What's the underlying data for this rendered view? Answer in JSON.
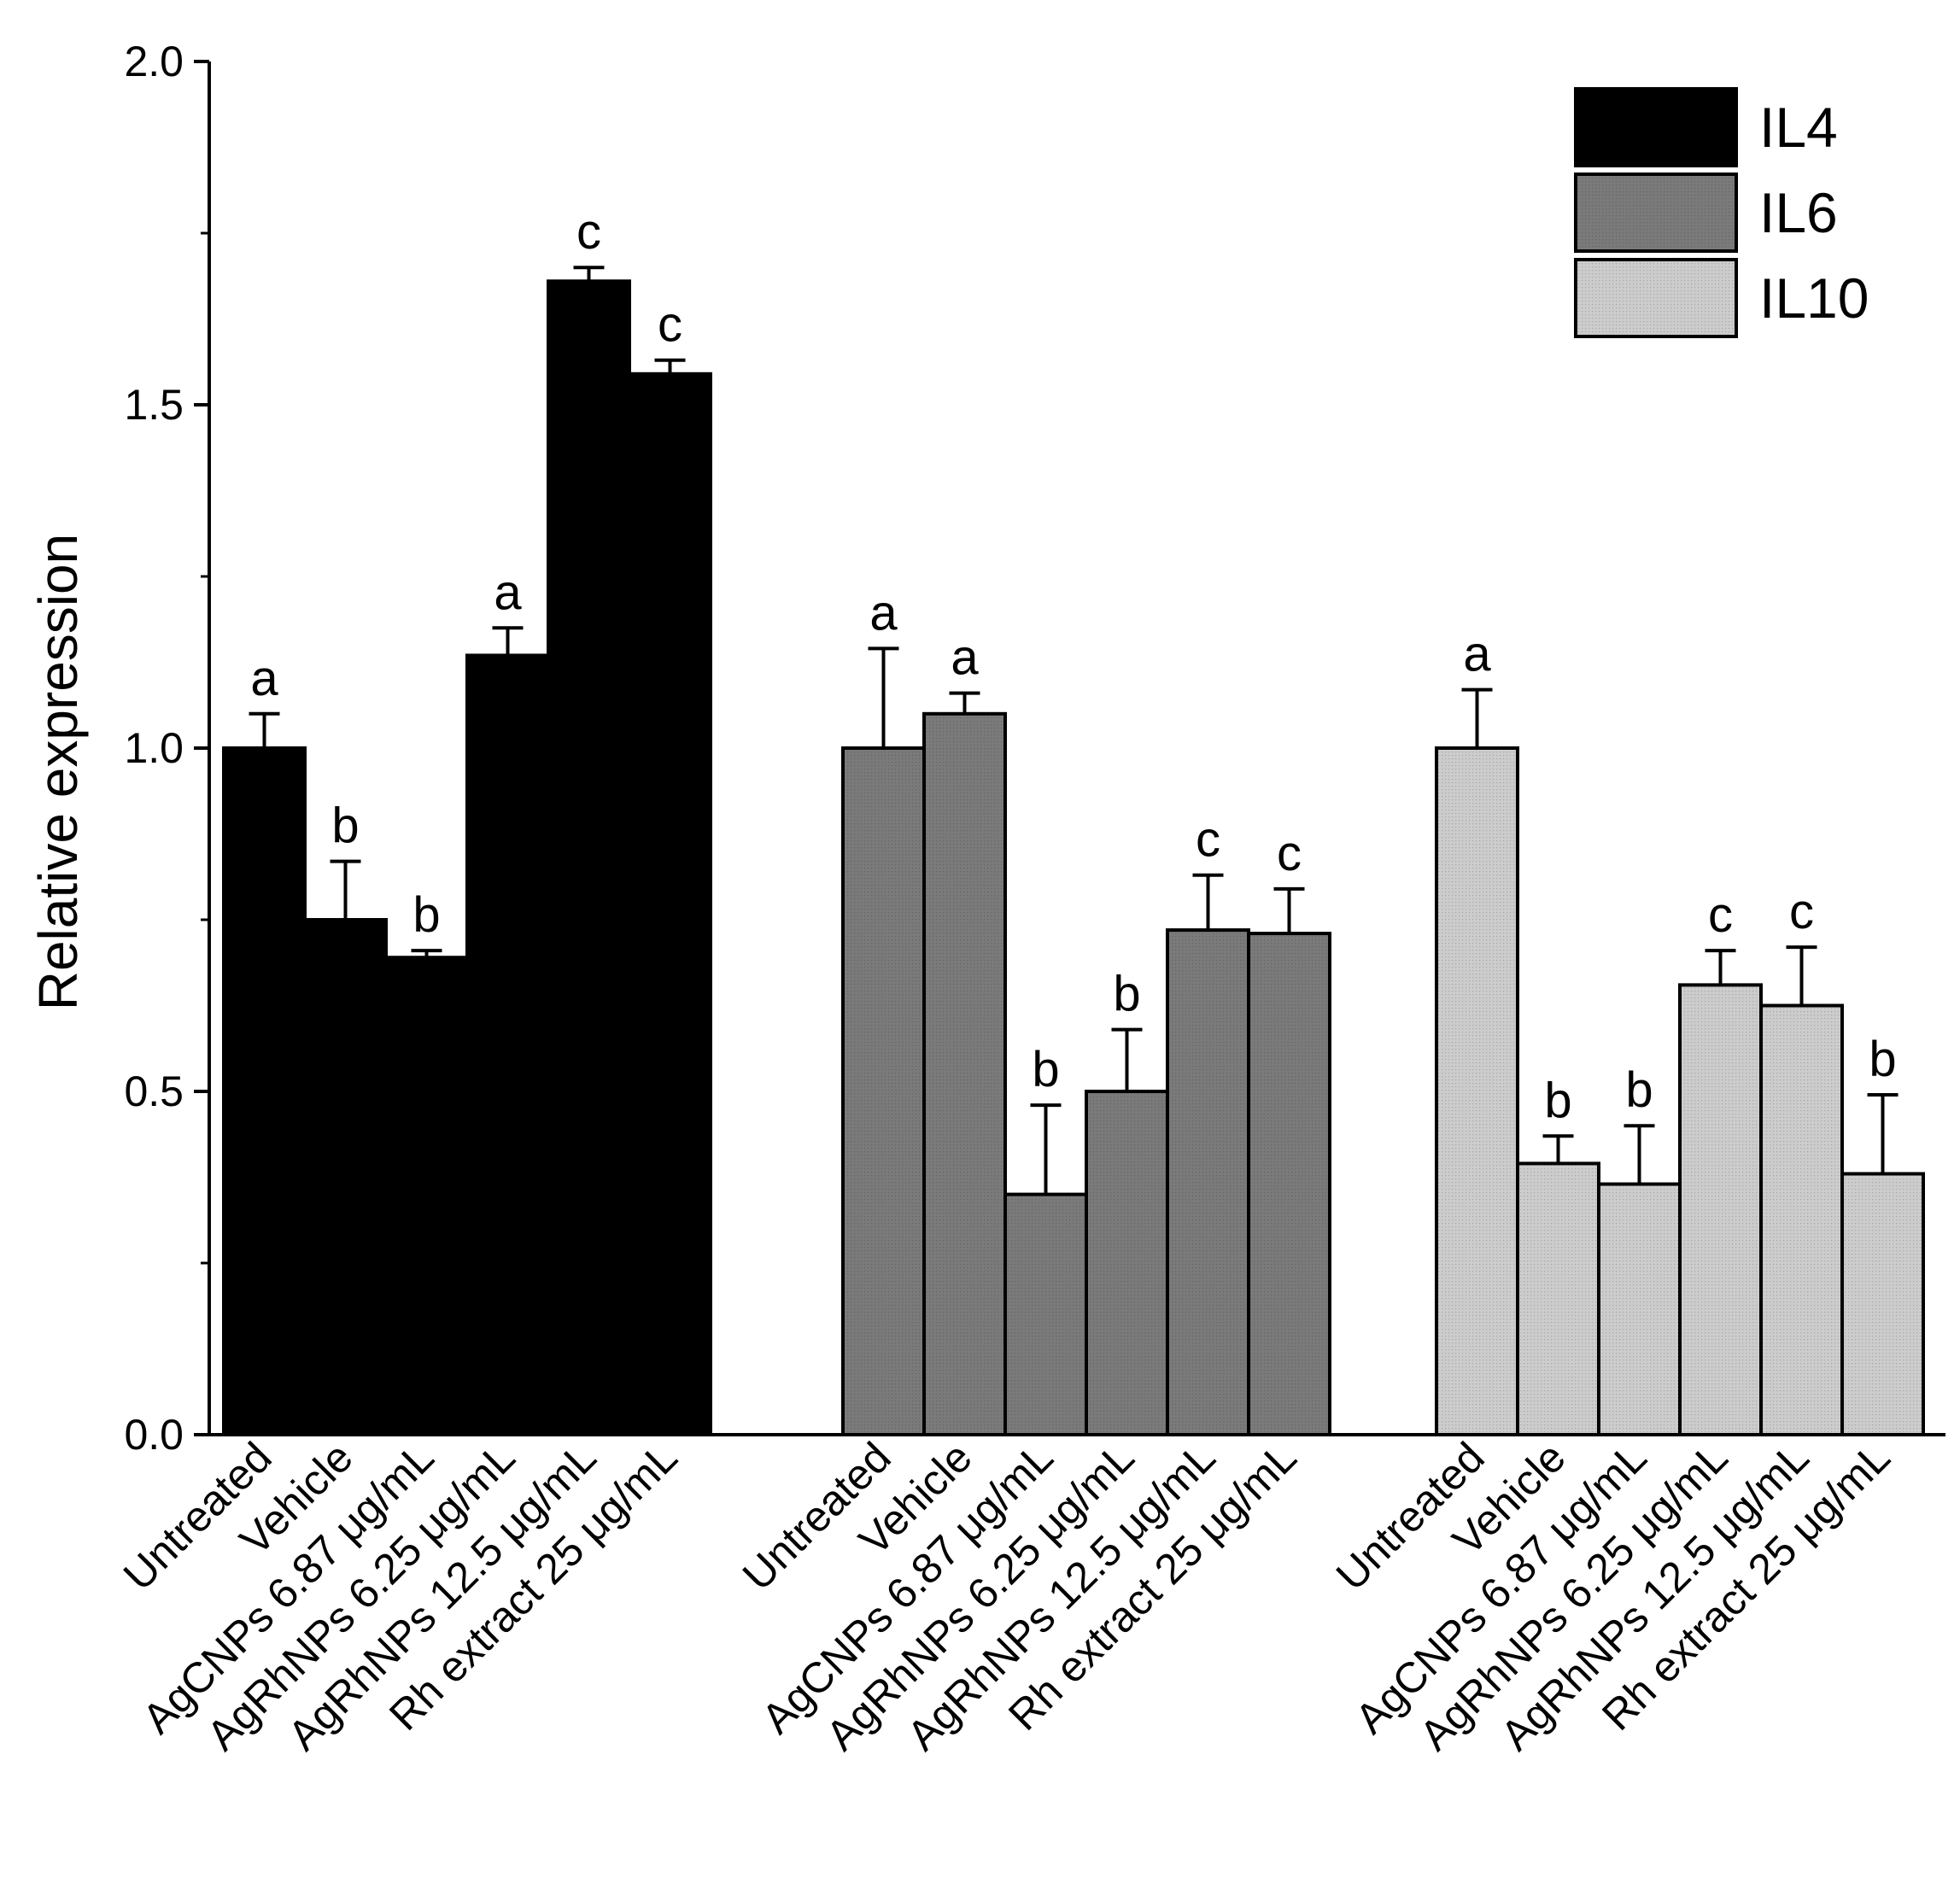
{
  "chart_data": {
    "type": "bar",
    "title": "",
    "xlabel": "",
    "ylabel": "Relative expression",
    "ylim": [
      0,
      2.0
    ],
    "yticks": [
      "0.0",
      "0.5",
      "1.0",
      "1.5",
      "2.0"
    ],
    "legend_position": "top-right",
    "colors": {
      "IL4": "#000000",
      "IL6": "#7a7a7a",
      "IL10": "#cccccc"
    },
    "groups": [
      {
        "name": "IL4",
        "categories": [
          "Untreated",
          "Vehicle",
          "AgCNPs 6.87 μg/mL",
          "AgRhNPs 6.25 μg/mL",
          "AgRhNPs 12.5 μg/mL",
          "Rh extract 25 μg/mL"
        ],
        "values": [
          1.0,
          0.75,
          0.695,
          1.135,
          1.68,
          1.545
        ],
        "errors": [
          0.05,
          0.085,
          0.01,
          0.04,
          0.02,
          0.02
        ],
        "significance": [
          "a",
          "b",
          "b",
          "a",
          "c",
          "c"
        ]
      },
      {
        "name": "IL6",
        "categories": [
          "Untreated",
          "Vehicle",
          "AgCNPs 6.87 μg/mL",
          "AgRhNPs 6.25 μg/mL",
          "AgRhNPs 12.5 μg/mL",
          "Rh extract 25 μg/mL"
        ],
        "values": [
          1.0,
          1.05,
          0.35,
          0.5,
          0.735,
          0.73
        ],
        "errors": [
          0.145,
          0.03,
          0.13,
          0.09,
          0.08,
          0.065
        ],
        "significance": [
          "a",
          "a",
          "b",
          "b",
          "c",
          "c"
        ]
      },
      {
        "name": "IL10",
        "categories": [
          "Untreated",
          "Vehicle",
          "AgCNPs 6.87 μg/mL",
          "AgRhNPs 6.25 μg/mL",
          "AgRhNPs 12.5 μg/mL",
          "Rh extract 25 μg/mL"
        ],
        "values": [
          1.0,
          0.395,
          0.365,
          0.655,
          0.625,
          0.38
        ],
        "errors": [
          0.085,
          0.04,
          0.085,
          0.05,
          0.085,
          0.115
        ],
        "significance": [
          "a",
          "b",
          "b",
          "c",
          "c",
          "b"
        ]
      }
    ]
  }
}
